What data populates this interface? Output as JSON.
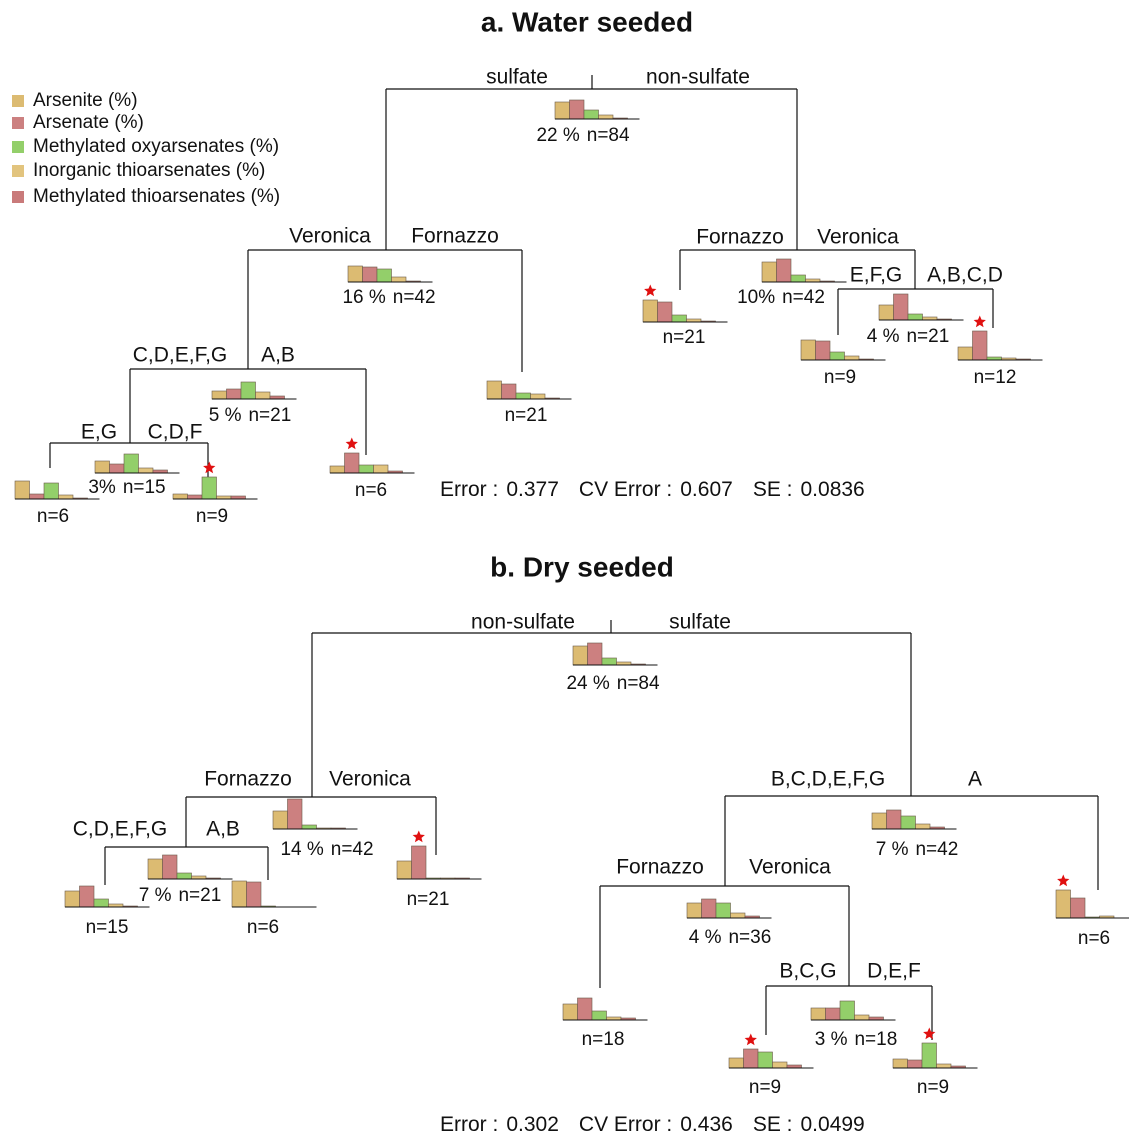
{
  "legend": [
    {
      "label": "Arsenite (%)",
      "color": "#dcbb72"
    },
    {
      "label": "Arsenate (%)",
      "color": "#cc8080"
    },
    {
      "label": "Methylated oxyarsenates (%)",
      "color": "#93cf6a"
    },
    {
      "label": "Inorganic thioarsenates  (%)",
      "color": "#e2c47e"
    },
    {
      "label": "Methylated thioarsenates (%)",
      "color": "#c97a7a"
    }
  ],
  "trees": [
    {
      "title": "a. Water seeded",
      "splits": [
        {
          "left": "sulfate",
          "right": "non-sulfate"
        },
        {
          "left": "Veronica",
          "right": "Fornazzo"
        },
        {
          "left": "C,D,E,F,G",
          "right": "A,B"
        },
        {
          "left": "E,G",
          "right": "C,D,F"
        },
        {
          "left": "Fornazzo",
          "right": "Veronica"
        },
        {
          "left": "E,F,G",
          "right": "A,B,C,D"
        }
      ],
      "nodes": [
        {
          "pct": "22 %",
          "n": "n=84",
          "values": [
            34,
            38,
            18,
            8,
            2
          ]
        },
        {
          "pct": "16 %",
          "n": "n=42",
          "values": [
            32,
            30,
            26,
            10,
            2
          ]
        },
        {
          "pct": "5 %",
          "n": "n=21",
          "values": [
            16,
            20,
            34,
            14,
            6
          ]
        },
        {
          "pct": "3%",
          "n": "n=15",
          "values": [
            24,
            18,
            38,
            10,
            6
          ]
        },
        {
          "n": "n=6",
          "values": [
            36,
            10,
            32,
            8,
            2
          ]
        },
        {
          "n": "n=9",
          "values": [
            10,
            8,
            44,
            6,
            6
          ],
          "star": true
        },
        {
          "n": "n=6",
          "values": [
            14,
            40,
            16,
            16,
            4
          ],
          "star": true
        },
        {
          "n": "n=21",
          "values": [
            36,
            30,
            12,
            10,
            2
          ]
        },
        {
          "pct": "10%",
          "n": "n=42",
          "values": [
            40,
            46,
            14,
            6,
            2
          ]
        },
        {
          "n": "n=21",
          "values": [
            44,
            40,
            14,
            6,
            2
          ],
          "star": true
        },
        {
          "pct": "4 %",
          "n": "n=21",
          "values": [
            30,
            52,
            12,
            6,
            2
          ]
        },
        {
          "n": "n=9",
          "values": [
            40,
            38,
            16,
            8,
            2
          ]
        },
        {
          "n": "n=12",
          "values": [
            26,
            58,
            6,
            4,
            2
          ],
          "star": true
        }
      ],
      "error_label": "Error :",
      "error": 0.377,
      "cv_label": "CV Error :",
      "cv_error": 0.607,
      "se_label": "SE :",
      "se": 0.0836
    },
    {
      "title": "b. Dry seeded",
      "splits": [
        {
          "left": "non-sulfate",
          "right": "sulfate"
        },
        {
          "left": "Fornazzo",
          "right": "Veronica"
        },
        {
          "left": "C,D,E,F,G",
          "right": "A,B"
        },
        {
          "left": "B,C,D,E,F,G",
          "right": "A"
        },
        {
          "left": "Fornazzo",
          "right": "Veronica"
        },
        {
          "left": "B,C,G",
          "right": "D,E,F"
        }
      ],
      "nodes": [
        {
          "pct": "24 %",
          "n": "n=84",
          "values": [
            38,
            44,
            14,
            6,
            2
          ]
        },
        {
          "pct": "14 %",
          "n": "n=42",
          "values": [
            36,
            60,
            8,
            2,
            2
          ]
        },
        {
          "pct": "7 %",
          "n": "n=21",
          "values": [
            40,
            48,
            12,
            6,
            2
          ]
        },
        {
          "n": "n=15",
          "values": [
            32,
            42,
            16,
            6,
            2
          ]
        },
        {
          "n": "n=6",
          "values": [
            52,
            50,
            2,
            0,
            0
          ]
        },
        {
          "n": "n=21",
          "values": [
            36,
            66,
            2,
            2,
            2
          ],
          "star": true
        },
        {
          "pct": "7 %",
          "n": "n=42",
          "values": [
            32,
            38,
            26,
            10,
            4
          ]
        },
        {
          "pct": "4 %",
          "n": "n=36",
          "values": [
            30,
            38,
            30,
            10,
            4
          ]
        },
        {
          "n": "n=6",
          "values": [
            56,
            40,
            2,
            4,
            0
          ],
          "star": true
        },
        {
          "n": "n=18",
          "values": [
            32,
            44,
            18,
            6,
            4
          ]
        },
        {
          "pct": "3 %",
          "n": "n=18",
          "values": [
            24,
            24,
            38,
            10,
            6
          ]
        },
        {
          "n": "n=9",
          "values": [
            20,
            38,
            32,
            12,
            6
          ],
          "star": true
        },
        {
          "n": "n=9",
          "values": [
            18,
            16,
            50,
            8,
            4
          ],
          "star": true
        }
      ],
      "error_label": "Error :",
      "error": 0.302,
      "cv_label": "CV Error :",
      "cv_error": 0.436,
      "se_label": "SE :",
      "se": 0.0499
    }
  ]
}
